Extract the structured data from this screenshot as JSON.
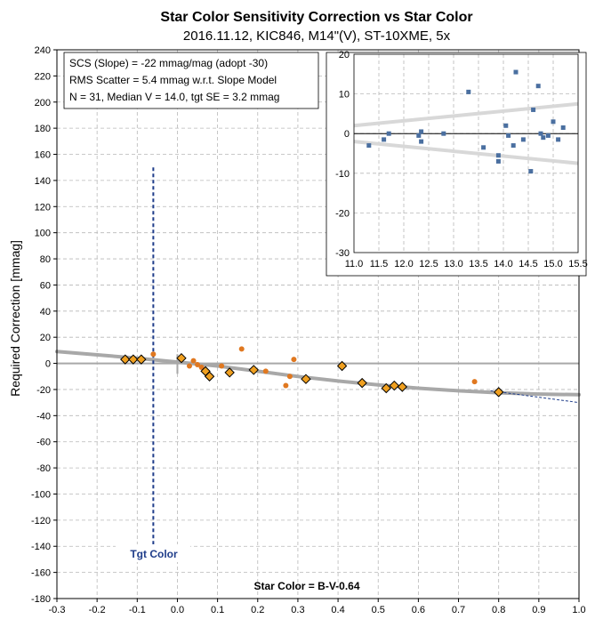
{
  "chart_data": {
    "type": "scatter",
    "title": "Star Color Sensitivity Correction vs Star Color",
    "subtitle": "2016.11.12, KIC846, M14\"(V), ST-10XME, 5x",
    "xlabel": "Star Color = B-V-0.64",
    "ylabel": "Required Correction [mmag]",
    "xlim": [
      -0.3,
      1.0
    ],
    "ylim": [
      -180,
      240
    ],
    "x_ticks": [
      "-0.3",
      "-0.2",
      "-0.1",
      "0.0",
      "0.1",
      "0.2",
      "0.3",
      "0.4",
      "0.5",
      "0.6",
      "0.7",
      "0.8",
      "0.9",
      "1.0"
    ],
    "y_ticks": [
      "-180",
      "-160",
      "-140",
      "-120",
      "-100",
      "-80",
      "-60",
      "-40",
      "-20",
      "0",
      "20",
      "40",
      "60",
      "80",
      "100",
      "120",
      "140",
      "160",
      "180",
      "200",
      "220",
      "240"
    ],
    "grid": true,
    "annotation_lines": [
      "SCS (Slope)  =  -22 mmag/mag (adopt -30)",
      "RMS Scatter = 5.4 mmag w.r.t. Slope Model",
      "N = 31,  Median V = 14.0, tgt SE = 3.2 mmag"
    ],
    "target_label": "Tgt Color",
    "target_x": -0.06,
    "diamonds": [
      {
        "x": -0.13,
        "y": 3
      },
      {
        "x": -0.11,
        "y": 3
      },
      {
        "x": -0.09,
        "y": 3
      },
      {
        "x": 0.01,
        "y": 4
      },
      {
        "x": 0.07,
        "y": -6
      },
      {
        "x": 0.08,
        "y": -10
      },
      {
        "x": 0.13,
        "y": -7
      },
      {
        "x": 0.19,
        "y": -5
      },
      {
        "x": 0.32,
        "y": -12
      },
      {
        "x": 0.41,
        "y": -2
      },
      {
        "x": 0.46,
        "y": -15
      },
      {
        "x": 0.52,
        "y": -19
      },
      {
        "x": 0.54,
        "y": -17
      },
      {
        "x": 0.56,
        "y": -18
      },
      {
        "x": 0.8,
        "y": -22
      }
    ],
    "dots": [
      {
        "x": -0.06,
        "y": 7
      },
      {
        "x": 0.03,
        "y": -2
      },
      {
        "x": 0.04,
        "y": 2
      },
      {
        "x": 0.05,
        "y": -1
      },
      {
        "x": 0.06,
        "y": -3
      },
      {
        "x": 0.11,
        "y": -2
      },
      {
        "x": 0.16,
        "y": 11
      },
      {
        "x": 0.22,
        "y": -6
      },
      {
        "x": 0.27,
        "y": -17
      },
      {
        "x": 0.28,
        "y": -10
      },
      {
        "x": 0.29,
        "y": 3
      },
      {
        "x": 0.74,
        "y": -14
      }
    ],
    "model_curve": [
      {
        "x": -0.3,
        "y": 9
      },
      {
        "x": -0.1,
        "y": 4
      },
      {
        "x": 0.0,
        "y": 1
      },
      {
        "x": 0.1,
        "y": -2
      },
      {
        "x": 0.2,
        "y": -6
      },
      {
        "x": 0.3,
        "y": -10
      },
      {
        "x": 0.4,
        "y": -13.5
      },
      {
        "x": 0.5,
        "y": -16.5
      },
      {
        "x": 0.6,
        "y": -19
      },
      {
        "x": 0.7,
        "y": -21
      },
      {
        "x": 0.8,
        "y": -22.5
      },
      {
        "x": 0.9,
        "y": -23.5
      },
      {
        "x": 1.0,
        "y": -24
      }
    ],
    "extension_line": [
      {
        "x": 0.78,
        "y": -21
      },
      {
        "x": 1.0,
        "y": -30
      }
    ],
    "inset": {
      "xlim": [
        11.0,
        15.5
      ],
      "ylim": [
        -30,
        20
      ],
      "x_ticks": [
        "11.0",
        "11.5",
        "12.0",
        "12.5",
        "13.0",
        "13.5",
        "14.0",
        "14.5",
        "15.0",
        "15.5"
      ],
      "y_ticks": [
        "-30",
        "-20",
        "-10",
        "0",
        "10",
        "20"
      ],
      "points": [
        {
          "x": 11.3,
          "y": -3
        },
        {
          "x": 11.6,
          "y": -1.5
        },
        {
          "x": 11.7,
          "y": 0
        },
        {
          "x": 12.3,
          "y": -0.5
        },
        {
          "x": 12.35,
          "y": 0.5
        },
        {
          "x": 12.35,
          "y": -2
        },
        {
          "x": 12.8,
          "y": 0
        },
        {
          "x": 13.3,
          "y": 10.5
        },
        {
          "x": 13.6,
          "y": -3.5
        },
        {
          "x": 13.9,
          "y": -7
        },
        {
          "x": 13.9,
          "y": -5.5
        },
        {
          "x": 14.05,
          "y": 2
        },
        {
          "x": 14.1,
          "y": -0.5
        },
        {
          "x": 14.2,
          "y": -3
        },
        {
          "x": 14.25,
          "y": 15.5
        },
        {
          "x": 14.4,
          "y": -1.5
        },
        {
          "x": 14.55,
          "y": -9.5
        },
        {
          "x": 14.6,
          "y": 6
        },
        {
          "x": 14.7,
          "y": 12
        },
        {
          "x": 14.75,
          "y": 0
        },
        {
          "x": 14.8,
          "y": -1
        },
        {
          "x": 14.9,
          "y": -0.5
        },
        {
          "x": 15.0,
          "y": 3
        },
        {
          "x": 15.1,
          "y": -1.5
        },
        {
          "x": 15.2,
          "y": 1.5
        }
      ],
      "envelope_upper": [
        {
          "x": 11.0,
          "y": 2
        },
        {
          "x": 15.5,
          "y": 7.5
        }
      ],
      "envelope_lower": [
        {
          "x": 11.0,
          "y": -2
        },
        {
          "x": 15.5,
          "y": -7.5
        }
      ]
    }
  },
  "colors": {
    "diamond_fill": "#f0a020",
    "diamond_stroke": "#000000",
    "dot_fill": "#e07820",
    "model_line": "#a8a8a8",
    "target_line": "#1f3d8a",
    "inset_point": "#4a6fa0",
    "inset_envelope": "#d8d8d8"
  }
}
